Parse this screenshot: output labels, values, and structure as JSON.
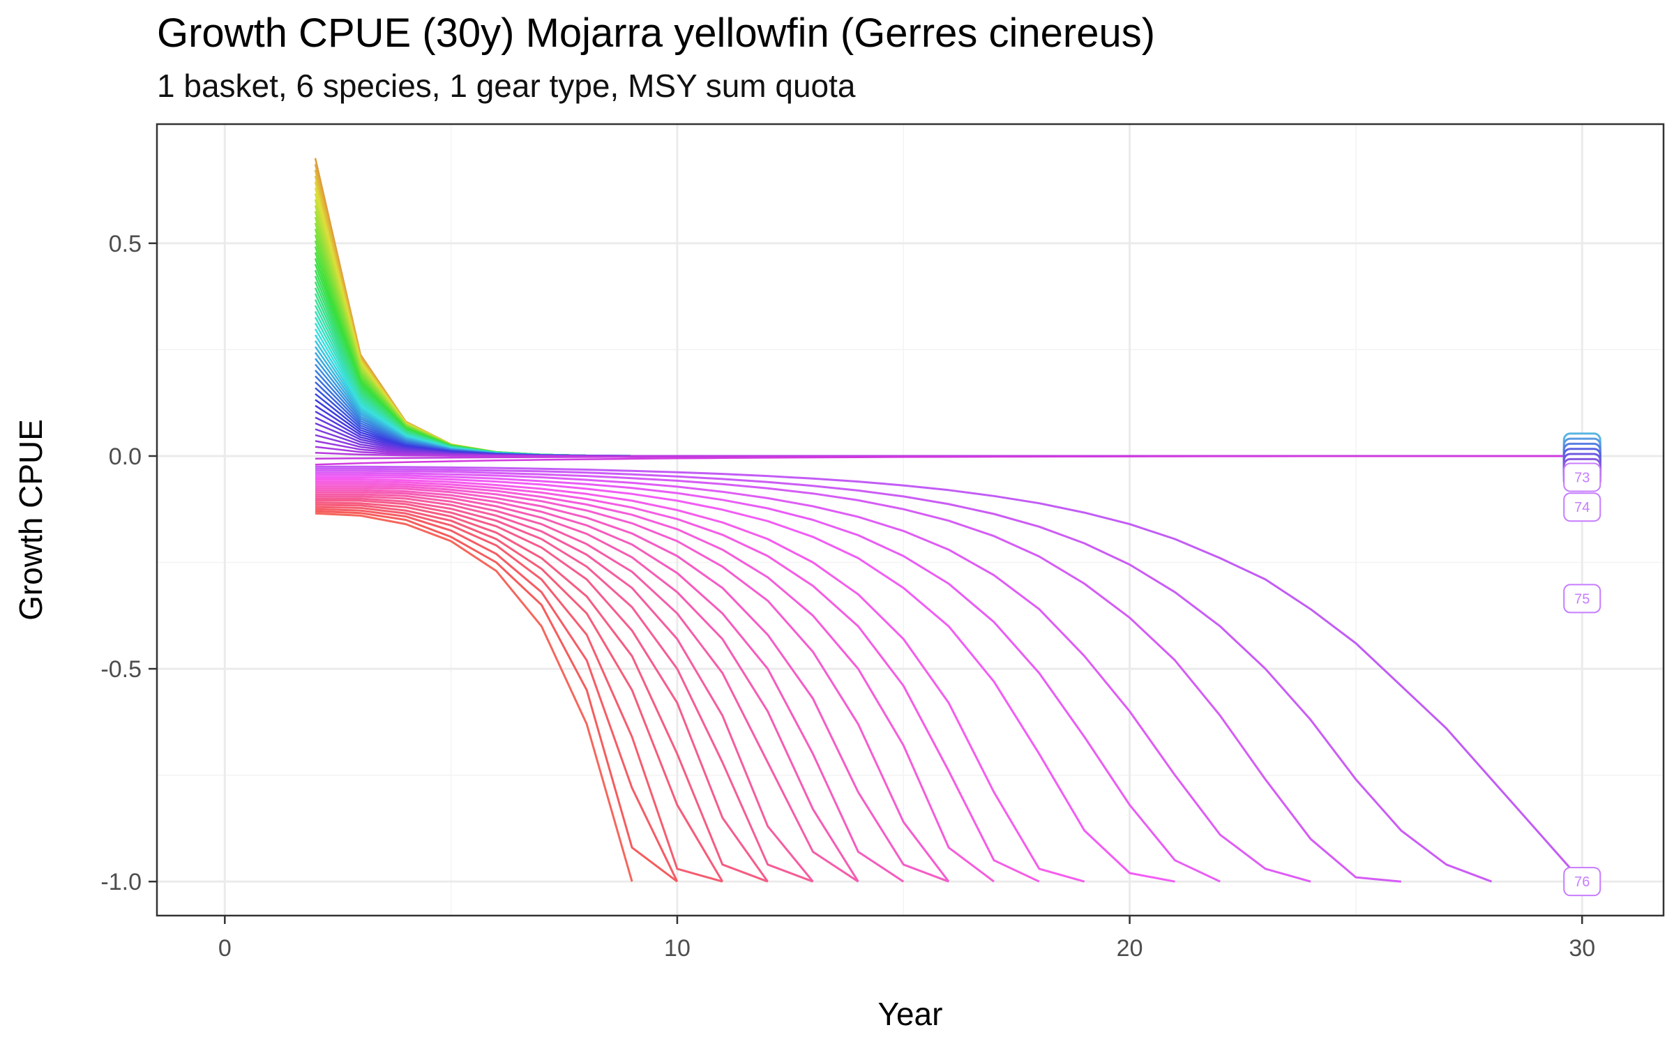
{
  "title": "Growth CPUE (30y) Mojarra yellowfin (Gerres cinereus)",
  "subtitle": "1 basket, 6 species, 1 gear type, MSY sum quota",
  "chart_data": {
    "type": "line",
    "xlabel": "Year",
    "ylabel": "Growth CPUE",
    "xlim": [
      -1.5,
      31.8
    ],
    "ylim": [
      -1.08,
      0.78
    ],
    "x_ticks": [
      0,
      10,
      20,
      30
    ],
    "x_tick_labels": [
      "0",
      "10",
      "20",
      "30"
    ],
    "y_ticks": [
      -1.0,
      -0.5,
      0.0,
      0.5
    ],
    "y_tick_labels": [
      "-1.0",
      "-0.5",
      "0.0",
      "0.5"
    ],
    "grid": true,
    "legend": "none",
    "series_count": 76,
    "collapsed_series": [
      {
        "name": "1",
        "x": [
          2,
          3,
          4,
          5,
          6,
          7,
          8,
          9
        ],
        "values": [
          -0.135,
          -0.14,
          -0.16,
          -0.2,
          -0.27,
          -0.4,
          -0.63,
          -1.0
        ]
      },
      {
        "name": "2",
        "x": [
          2,
          3,
          4,
          5,
          6,
          7,
          8,
          9,
          10
        ],
        "values": [
          -0.13,
          -0.134,
          -0.15,
          -0.19,
          -0.25,
          -0.35,
          -0.55,
          -0.92,
          -1.0
        ]
      },
      {
        "name": "3",
        "x": [
          2,
          3,
          4,
          5,
          6,
          7,
          8,
          9,
          10
        ],
        "values": [
          -0.125,
          -0.128,
          -0.142,
          -0.175,
          -0.23,
          -0.32,
          -0.48,
          -0.78,
          -1.0
        ]
      },
      {
        "name": "4",
        "x": [
          2,
          3,
          4,
          5,
          6,
          7,
          8,
          9,
          10,
          11
        ],
        "values": [
          -0.12,
          -0.122,
          -0.135,
          -0.163,
          -0.21,
          -0.29,
          -0.42,
          -0.66,
          -0.97,
          -1.0
        ]
      },
      {
        "name": "5",
        "x": [
          2,
          3,
          4,
          5,
          6,
          7,
          8,
          9,
          10,
          11
        ],
        "values": [
          -0.115,
          -0.116,
          -0.128,
          -0.152,
          -0.195,
          -0.265,
          -0.37,
          -0.55,
          -0.82,
          -1.0
        ]
      },
      {
        "name": "6",
        "x": [
          2,
          3,
          4,
          5,
          6,
          7,
          8,
          9,
          10,
          11,
          12
        ],
        "values": [
          -0.11,
          -0.111,
          -0.12,
          -0.142,
          -0.18,
          -0.24,
          -0.33,
          -0.47,
          -0.7,
          -0.96,
          -1.0
        ]
      },
      {
        "name": "7",
        "x": [
          2,
          3,
          4,
          5,
          6,
          7,
          8,
          9,
          10,
          11,
          12
        ],
        "values": [
          -0.105,
          -0.105,
          -0.113,
          -0.133,
          -0.165,
          -0.215,
          -0.29,
          -0.41,
          -0.58,
          -0.85,
          -1.0
        ]
      },
      {
        "name": "8",
        "x": [
          2,
          3,
          4,
          5,
          6,
          7,
          8,
          9,
          10,
          11,
          12,
          13
        ],
        "values": [
          -0.1,
          -0.1,
          -0.107,
          -0.124,
          -0.152,
          -0.195,
          -0.26,
          -0.355,
          -0.5,
          -0.72,
          -0.96,
          -1.0
        ]
      },
      {
        "name": "9",
        "x": [
          2,
          3,
          4,
          5,
          6,
          7,
          8,
          9,
          10,
          11,
          12,
          13
        ],
        "values": [
          -0.095,
          -0.095,
          -0.1,
          -0.115,
          -0.14,
          -0.177,
          -0.232,
          -0.31,
          -0.43,
          -0.61,
          -0.87,
          -1.0
        ]
      },
      {
        "name": "10",
        "x": [
          2,
          3,
          4,
          5,
          6,
          7,
          8,
          9,
          10,
          11,
          12,
          13,
          14
        ],
        "values": [
          -0.09,
          -0.09,
          -0.094,
          -0.107,
          -0.129,
          -0.16,
          -0.207,
          -0.272,
          -0.37,
          -0.51,
          -0.72,
          -0.93,
          -1.0
        ]
      },
      {
        "name": "11",
        "x": [
          2,
          3,
          4,
          5,
          6,
          7,
          8,
          9,
          10,
          11,
          12,
          13,
          14
        ],
        "values": [
          -0.085,
          -0.085,
          -0.088,
          -0.099,
          -0.118,
          -0.145,
          -0.183,
          -0.238,
          -0.32,
          -0.43,
          -0.6,
          -0.83,
          -1.0
        ]
      },
      {
        "name": "12",
        "x": [
          2,
          3,
          4,
          5,
          6,
          7,
          8,
          9,
          10,
          11,
          12,
          13,
          14,
          15
        ],
        "values": [
          -0.08,
          -0.08,
          -0.083,
          -0.092,
          -0.108,
          -0.131,
          -0.163,
          -0.208,
          -0.275,
          -0.37,
          -0.5,
          -0.7,
          -0.93,
          -1.0
        ]
      },
      {
        "name": "13",
        "x": [
          2,
          3,
          4,
          5,
          6,
          7,
          8,
          9,
          10,
          11,
          12,
          13,
          14,
          15,
          16
        ],
        "values": [
          -0.075,
          -0.075,
          -0.077,
          -0.085,
          -0.099,
          -0.118,
          -0.145,
          -0.182,
          -0.235,
          -0.31,
          -0.42,
          -0.57,
          -0.79,
          -0.96,
          -1.0
        ]
      },
      {
        "name": "14",
        "x": [
          2,
          3,
          4,
          5,
          6,
          7,
          8,
          9,
          10,
          11,
          12,
          13,
          14,
          15,
          16
        ],
        "values": [
          -0.07,
          -0.07,
          -0.072,
          -0.079,
          -0.09,
          -0.106,
          -0.128,
          -0.158,
          -0.2,
          -0.26,
          -0.34,
          -0.46,
          -0.63,
          -0.86,
          -1.0
        ]
      },
      {
        "name": "15",
        "x": [
          2,
          3,
          4,
          5,
          6,
          7,
          8,
          9,
          10,
          11,
          12,
          13,
          14,
          15,
          16,
          17
        ],
        "values": [
          -0.065,
          -0.065,
          -0.067,
          -0.073,
          -0.082,
          -0.096,
          -0.114,
          -0.138,
          -0.172,
          -0.22,
          -0.285,
          -0.375,
          -0.5,
          -0.68,
          -0.92,
          -1.0
        ]
      },
      {
        "name": "16",
        "x": [
          2,
          3,
          4,
          5,
          6,
          7,
          8,
          9,
          10,
          11,
          12,
          13,
          14,
          15,
          16,
          17,
          18
        ],
        "values": [
          -0.06,
          -0.06,
          -0.062,
          -0.067,
          -0.075,
          -0.086,
          -0.101,
          -0.121,
          -0.148,
          -0.185,
          -0.235,
          -0.305,
          -0.4,
          -0.54,
          -0.74,
          -0.95,
          -1.0
        ]
      },
      {
        "name": "17",
        "x": [
          2,
          3,
          4,
          5,
          6,
          7,
          8,
          9,
          10,
          11,
          12,
          13,
          14,
          15,
          16,
          17,
          18,
          19
        ],
        "values": [
          -0.055,
          -0.055,
          -0.057,
          -0.061,
          -0.068,
          -0.077,
          -0.089,
          -0.105,
          -0.127,
          -0.156,
          -0.195,
          -0.25,
          -0.325,
          -0.43,
          -0.58,
          -0.79,
          -0.97,
          -1.0
        ]
      },
      {
        "name": "18",
        "x": [
          2,
          3,
          4,
          5,
          6,
          7,
          8,
          9,
          10,
          11,
          12,
          13,
          14,
          15,
          16,
          17,
          18,
          19,
          20,
          21
        ],
        "values": [
          -0.05,
          -0.05,
          -0.051,
          -0.055,
          -0.06,
          -0.067,
          -0.077,
          -0.089,
          -0.105,
          -0.126,
          -0.153,
          -0.19,
          -0.24,
          -0.31,
          -0.4,
          -0.53,
          -0.7,
          -0.88,
          -0.98,
          -1.0
        ]
      },
      {
        "name": "19",
        "x": [
          2,
          3,
          4,
          5,
          6,
          7,
          8,
          9,
          10,
          11,
          12,
          13,
          14,
          15,
          16,
          17,
          18,
          19,
          20,
          21,
          22
        ],
        "values": [
          -0.045,
          -0.045,
          -0.046,
          -0.049,
          -0.053,
          -0.059,
          -0.066,
          -0.075,
          -0.087,
          -0.103,
          -0.123,
          -0.15,
          -0.186,
          -0.235,
          -0.3,
          -0.39,
          -0.51,
          -0.66,
          -0.82,
          -0.95,
          -1.0
        ]
      },
      {
        "name": "20",
        "x": [
          2,
          3,
          4,
          5,
          6,
          7,
          8,
          9,
          10,
          11,
          12,
          13,
          14,
          15,
          16,
          17,
          18,
          19,
          20,
          21,
          22,
          23,
          24
        ],
        "values": [
          -0.04,
          -0.04,
          -0.041,
          -0.043,
          -0.046,
          -0.05,
          -0.056,
          -0.063,
          -0.072,
          -0.084,
          -0.099,
          -0.118,
          -0.143,
          -0.176,
          -0.22,
          -0.28,
          -0.36,
          -0.47,
          -0.6,
          -0.75,
          -0.89,
          -0.97,
          -1.0
        ]
      },
      {
        "name": "21",
        "x": [
          2,
          3,
          4,
          5,
          6,
          7,
          8,
          9,
          10,
          11,
          12,
          13,
          14,
          15,
          16,
          17,
          18,
          19,
          20,
          21,
          22,
          23,
          24,
          25,
          26
        ],
        "values": [
          -0.035,
          -0.035,
          -0.036,
          -0.037,
          -0.04,
          -0.043,
          -0.047,
          -0.052,
          -0.058,
          -0.066,
          -0.076,
          -0.088,
          -0.104,
          -0.125,
          -0.152,
          -0.188,
          -0.236,
          -0.3,
          -0.38,
          -0.48,
          -0.61,
          -0.76,
          -0.9,
          -0.99,
          -1.0
        ]
      },
      {
        "name": "22",
        "x": [
          2,
          3,
          4,
          5,
          6,
          7,
          8,
          9,
          10,
          11,
          12,
          13,
          14,
          15,
          16,
          17,
          18,
          19,
          20,
          21,
          22,
          23,
          24,
          25,
          26,
          27,
          28
        ],
        "values": [
          -0.03,
          -0.03,
          -0.031,
          -0.032,
          -0.034,
          -0.036,
          -0.039,
          -0.043,
          -0.048,
          -0.054,
          -0.061,
          -0.07,
          -0.081,
          -0.095,
          -0.113,
          -0.136,
          -0.166,
          -0.205,
          -0.255,
          -0.32,
          -0.4,
          -0.5,
          -0.62,
          -0.76,
          -0.88,
          -0.96,
          -1.0
        ]
      },
      {
        "name": "76",
        "x": [
          2,
          3,
          4,
          5,
          6,
          7,
          8,
          9,
          10,
          11,
          12,
          13,
          14,
          15,
          16,
          17,
          18,
          19,
          20,
          21,
          22,
          23,
          24,
          25,
          26,
          27,
          28,
          29,
          30
        ],
        "values": [
          -0.025,
          -0.025,
          -0.026,
          -0.027,
          -0.028,
          -0.03,
          -0.032,
          -0.035,
          -0.038,
          -0.042,
          -0.047,
          -0.053,
          -0.06,
          -0.069,
          -0.08,
          -0.094,
          -0.111,
          -0.133,
          -0.16,
          -0.195,
          -0.24,
          -0.29,
          -0.36,
          -0.44,
          -0.54,
          -0.64,
          -0.76,
          -0.88,
          -1.0
        ]
      }
    ],
    "fan_series_count": 53,
    "fan_start": {
      "x": 2,
      "range": [
        -0.02,
        0.7
      ]
    },
    "end_labels": [
      {
        "name": "73",
        "x": 30,
        "value": -0.05
      },
      {
        "name": "74",
        "x": 30,
        "value": -0.12
      },
      {
        "name": "75",
        "x": 30,
        "value": -0.335
      },
      {
        "name": "76",
        "x": 30,
        "value": -1.0
      }
    ],
    "colors": {
      "panel_border": "#333333",
      "grid_major": "#ebebeb",
      "grid_minor": "#f3f3f3",
      "collapse_start": "#f8766d",
      "collapse_end": "#c77cff",
      "fan_top": "#e7861b",
      "label_color": "#c77cff"
    }
  }
}
